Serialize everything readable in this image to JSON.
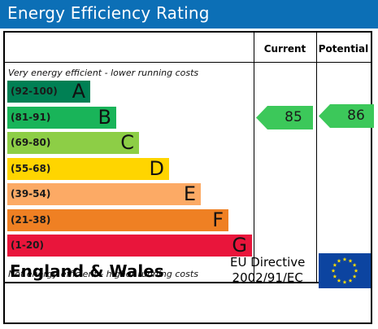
{
  "title": "Energy Efficiency Rating",
  "columns": {
    "current": "Current",
    "potential": "Potential"
  },
  "notes": {
    "top": "Very energy efficient - lower running costs",
    "bottom": "Not energy efficient - higher running costs"
  },
  "bands": [
    {
      "range": "(92-100)",
      "letter": "A",
      "color": "#008054"
    },
    {
      "range": "(81-91)",
      "letter": "B",
      "color": "#19b459"
    },
    {
      "range": "(69-80)",
      "letter": "C",
      "color": "#8dce46"
    },
    {
      "range": "(55-68)",
      "letter": "D",
      "color": "#ffd500"
    },
    {
      "range": "(39-54)",
      "letter": "E",
      "color": "#fcaa65"
    },
    {
      "range": "(21-38)",
      "letter": "F",
      "color": "#ef8023"
    },
    {
      "range": "(1-20)",
      "letter": "G",
      "color": "#e9153b"
    }
  ],
  "ratings": {
    "current": {
      "value": "85",
      "band": "B",
      "color": "#3cc85a"
    },
    "potential": {
      "value": "86",
      "band": "B",
      "color": "#3cc85a"
    }
  },
  "footer": {
    "region": "England & Wales",
    "directive_line1": "EU Directive",
    "directive_line2": "2002/91/EC"
  }
}
